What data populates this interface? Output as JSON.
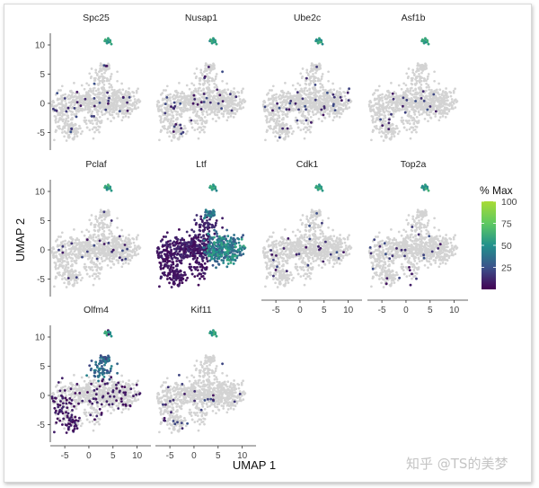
{
  "chart_data": {
    "type": "scatter",
    "description_kind": "UMAP feature plots faceted by gene",
    "xlabel": "UMAP 1",
    "ylabel": "UMAP 2",
    "x_ticks": [
      -5,
      0,
      5,
      10
    ],
    "y_ticks": [
      -5,
      0,
      5,
      10
    ],
    "xlim": [
      -8,
      11
    ],
    "ylim": [
      -8,
      12
    ],
    "panels": [
      {
        "gene": "Spc25",
        "expression": "sparse"
      },
      {
        "gene": "Nusap1",
        "expression": "sparse"
      },
      {
        "gene": "Ube2c",
        "expression": "sparse"
      },
      {
        "gene": "Asf1b",
        "expression": "sparse"
      },
      {
        "gene": "Pclaf",
        "expression": "sparse"
      },
      {
        "gene": "Ltf",
        "expression": "broad-high"
      },
      {
        "gene": "Cdk1",
        "expression": "sparse"
      },
      {
        "gene": "Top2a",
        "expression": "sparse"
      },
      {
        "gene": "Olfm4",
        "expression": "moderate"
      },
      {
        "gene": "Kif11",
        "expression": "sparse"
      }
    ],
    "legend": {
      "title": "% Max",
      "ticks": [
        25,
        50,
        75,
        100
      ],
      "range": [
        0,
        100
      ],
      "placement": "right",
      "colors": [
        "#440154",
        "#3b528b",
        "#21918c",
        "#5ec962",
        "#a8db34"
      ]
    },
    "grid": false,
    "background_cell_color": "#d3d3d3"
  },
  "watermark": "知乎 @TS的美梦"
}
